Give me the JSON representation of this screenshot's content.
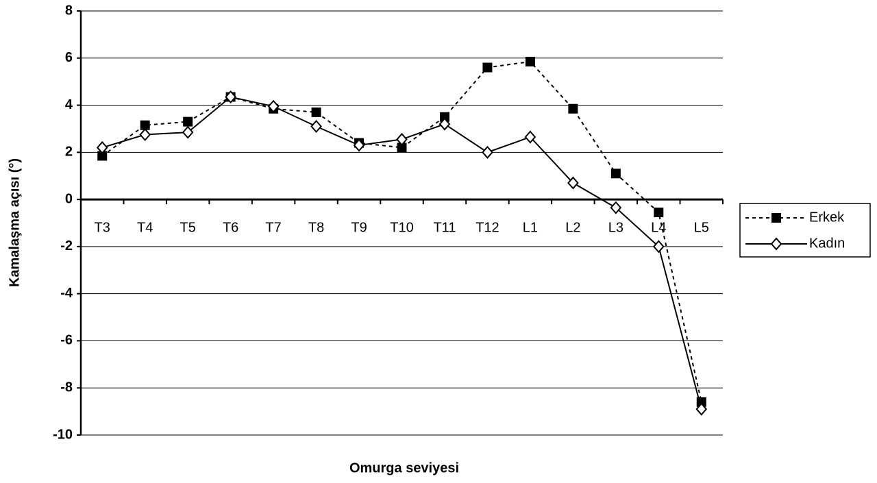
{
  "chart_data": {
    "type": "line",
    "x_label": "Omurga seviyesi",
    "y_label": "Kamalaşma açısı (°)",
    "categories": [
      "T3",
      "T4",
      "T5",
      "T6",
      "T7",
      "T8",
      "T9",
      "T10",
      "T11",
      "T12",
      "L1",
      "L2",
      "L3",
      "L4",
      "L5"
    ],
    "series": [
      {
        "name": "Erkek",
        "color": "#000000",
        "line_style": "dashed",
        "marker": "square",
        "values": [
          1.85,
          3.15,
          3.3,
          4.35,
          3.85,
          3.7,
          2.4,
          2.2,
          3.5,
          5.6,
          5.85,
          3.85,
          1.1,
          -0.55,
          -8.6
        ]
      },
      {
        "name": "Kadın",
        "color": "#000000",
        "line_style": "solid",
        "marker": "diamond",
        "values": [
          2.2,
          2.75,
          2.85,
          4.35,
          3.95,
          3.1,
          2.3,
          2.55,
          3.2,
          2.0,
          2.65,
          0.7,
          -0.35,
          -2.0,
          -8.9
        ]
      }
    ],
    "ylim": [
      -10,
      8
    ],
    "yticks": [
      -10,
      -8,
      -6,
      -4,
      -2,
      0,
      2,
      4,
      6,
      8
    ],
    "grid": true,
    "legend": "right"
  }
}
